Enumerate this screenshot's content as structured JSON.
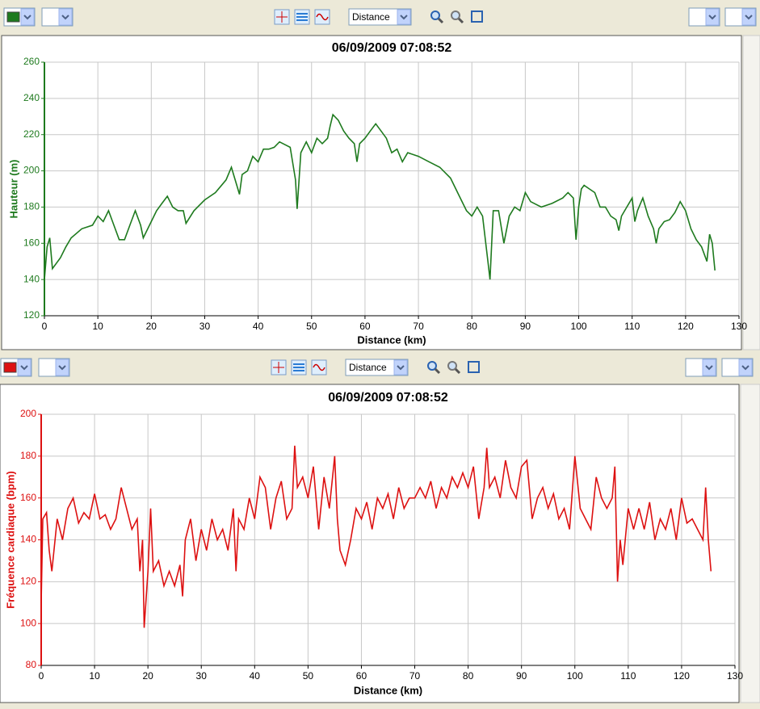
{
  "toolbars": [
    {
      "dropdown": "Distance"
    },
    {
      "dropdown": "Distance"
    }
  ],
  "chart_data": [
    {
      "type": "line",
      "title": "06/09/2009 07:08:52",
      "xlabel": "Distance (km)",
      "ylabel": "Hauteur (m)",
      "x": [
        0,
        0.5,
        1,
        1.5,
        3,
        4,
        5,
        7,
        9,
        10,
        11,
        12,
        13,
        14,
        15,
        16,
        17,
        18,
        18.5,
        20,
        21,
        22,
        23,
        24,
        25,
        26,
        26.5,
        28,
        30,
        32,
        34,
        35,
        36,
        36.5,
        37,
        38,
        39,
        40,
        41,
        42,
        43,
        44,
        46,
        47,
        47.3,
        48,
        49,
        50,
        51,
        52,
        53,
        53.5,
        54,
        55,
        56,
        57,
        58,
        58.5,
        59,
        60,
        61,
        62,
        63,
        64,
        65,
        66,
        67,
        68,
        70,
        72,
        74,
        76,
        77,
        78,
        79,
        80,
        81,
        82,
        83,
        83.4,
        84,
        85,
        86,
        87,
        88,
        89,
        90,
        91,
        93,
        95,
        97,
        98,
        99,
        99.5,
        100,
        100.5,
        101,
        102,
        103,
        104,
        105,
        106,
        107,
        107.5,
        108,
        109,
        110,
        110.5,
        111,
        112,
        113,
        114,
        114.5,
        115,
        116,
        117,
        118,
        119,
        120,
        121,
        122,
        123,
        124,
        124.5,
        125,
        125.5
      ],
      "series": [
        {
          "color": "#1e7a1e",
          "values": [
            140,
            158,
            163,
            146,
            152,
            158,
            163,
            168,
            170,
            175,
            172,
            178,
            170,
            162,
            162,
            170,
            178,
            170,
            163,
            172,
            178,
            182,
            186,
            180,
            178,
            178,
            171,
            178,
            184,
            188,
            195,
            202,
            192,
            187,
            198,
            200,
            208,
            205,
            212,
            212,
            213,
            216,
            213,
            195,
            179,
            210,
            216,
            210,
            218,
            215,
            218,
            225,
            231,
            228,
            222,
            218,
            215,
            205,
            215,
            218,
            222,
            226,
            222,
            218,
            210,
            212,
            205,
            210,
            208,
            205,
            202,
            196,
            190,
            184,
            178,
            175,
            180,
            175,
            150,
            140,
            178,
            178,
            160,
            175,
            180,
            178,
            188,
            183,
            180,
            182,
            185,
            188,
            185,
            162,
            180,
            190,
            192,
            190,
            188,
            180,
            180,
            175,
            173,
            167,
            175,
            180,
            185,
            172,
            178,
            185,
            175,
            168,
            160,
            168,
            172,
            173,
            177,
            183,
            178,
            168,
            162,
            158,
            150,
            165,
            160,
            145
          ]
        }
      ],
      "xlim": [
        0,
        130
      ],
      "xticks": [
        0,
        10,
        20,
        30,
        40,
        50,
        60,
        70,
        80,
        90,
        100,
        110,
        120,
        130
      ],
      "ylim": [
        120,
        260
      ],
      "yticks": [
        120,
        140,
        160,
        180,
        200,
        220,
        240,
        260
      ],
      "grid": true
    },
    {
      "type": "line",
      "title": "06/09/2009 07:08:52",
      "xlabel": "Distance (km)",
      "ylabel": "Fréquence cardiaque (bpm)",
      "x": [
        0,
        0.3,
        1,
        1.5,
        2,
        3,
        4,
        5,
        6,
        7,
        8,
        9,
        10,
        11,
        12,
        13,
        14,
        15,
        16,
        17,
        18,
        18.5,
        19,
        19.3,
        20,
        20.5,
        21,
        22,
        23,
        24,
        25,
        26,
        26.5,
        27,
        28,
        29,
        30,
        31,
        32,
        33,
        34,
        35,
        36,
        36.5,
        37,
        38,
        39,
        40,
        41,
        42,
        43,
        44,
        45,
        46,
        47,
        47.5,
        48,
        49,
        50,
        51,
        52,
        53,
        54,
        55,
        55.5,
        56,
        57,
        58,
        59,
        60,
        61,
        62,
        63,
        64,
        65,
        66,
        67,
        68,
        69,
        70,
        71,
        72,
        73,
        74,
        75,
        76,
        77,
        78,
        79,
        80,
        81,
        82,
        83,
        83.5,
        84,
        85,
        86,
        87,
        88,
        89,
        90,
        91,
        92,
        93,
        94,
        95,
        96,
        97,
        98,
        99,
        100,
        101,
        102,
        103,
        104,
        105,
        106,
        107,
        107.5,
        108,
        108.5,
        109,
        110,
        111,
        112,
        113,
        114,
        115,
        116,
        117,
        118,
        119,
        120,
        121,
        122,
        123,
        124,
        124.5,
        125,
        125.5
      ],
      "series": [
        {
          "color": "#dd1111",
          "values": [
            110,
            150,
            153,
            135,
            125,
            150,
            140,
            155,
            160,
            148,
            153,
            150,
            162,
            150,
            152,
            145,
            150,
            165,
            155,
            145,
            150,
            125,
            140,
            98,
            125,
            155,
            125,
            130,
            118,
            125,
            118,
            128,
            113,
            140,
            150,
            130,
            145,
            135,
            150,
            140,
            145,
            135,
            155,
            125,
            150,
            145,
            160,
            150,
            170,
            165,
            145,
            160,
            168,
            150,
            155,
            185,
            165,
            170,
            160,
            175,
            145,
            170,
            155,
            180,
            150,
            135,
            128,
            140,
            155,
            150,
            158,
            145,
            160,
            155,
            162,
            150,
            165,
            155,
            160,
            160,
            165,
            160,
            168,
            155,
            165,
            160,
            170,
            165,
            172,
            165,
            175,
            150,
            165,
            184,
            165,
            170,
            160,
            178,
            165,
            160,
            175,
            178,
            150,
            160,
            165,
            155,
            162,
            150,
            155,
            145,
            180,
            155,
            150,
            145,
            170,
            160,
            155,
            160,
            175,
            120,
            140,
            128,
            155,
            145,
            155,
            145,
            158,
            140,
            150,
            145,
            155,
            140,
            160,
            148,
            150,
            145,
            140,
            165,
            140,
            125
          ]
        }
      ],
      "xlim": [
        0,
        130
      ],
      "xticks": [
        0,
        10,
        20,
        30,
        40,
        50,
        60,
        70,
        80,
        90,
        100,
        110,
        120,
        130
      ],
      "ylim": [
        80,
        200
      ],
      "yticks": [
        80,
        100,
        120,
        140,
        160,
        180,
        200
      ],
      "grid": true
    }
  ]
}
